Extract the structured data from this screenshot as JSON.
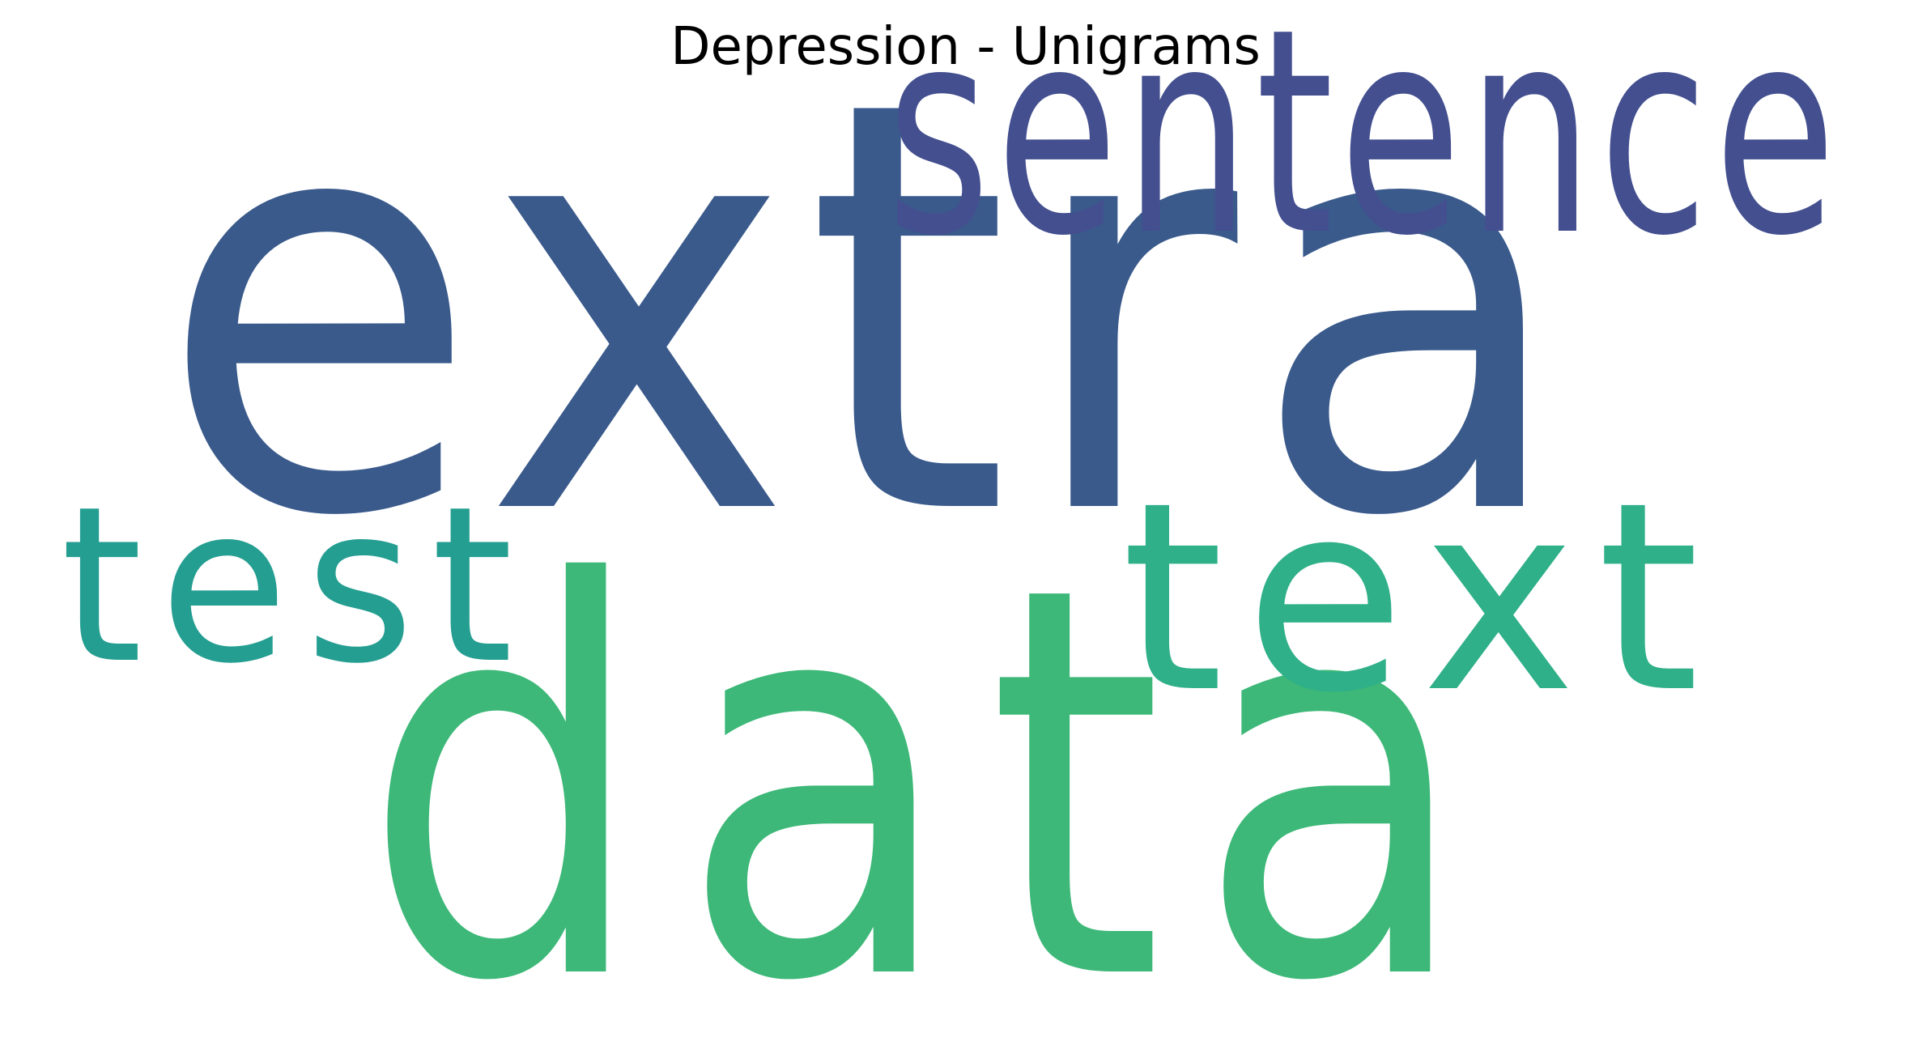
{
  "chart_data": {
    "type": "wordcloud",
    "title": "Depression - Unigrams",
    "words": [
      {
        "text": "extra",
        "weight": 1.0,
        "color": "#3a5a8c"
      },
      {
        "text": "data",
        "weight": 0.95,
        "color": "#3db878"
      },
      {
        "text": "sentence",
        "weight": 0.5,
        "color": "#434f8f"
      },
      {
        "text": "text",
        "weight": 0.46,
        "color": "#2fb088"
      },
      {
        "text": "test",
        "weight": 0.38,
        "color": "#249e91"
      }
    ]
  }
}
